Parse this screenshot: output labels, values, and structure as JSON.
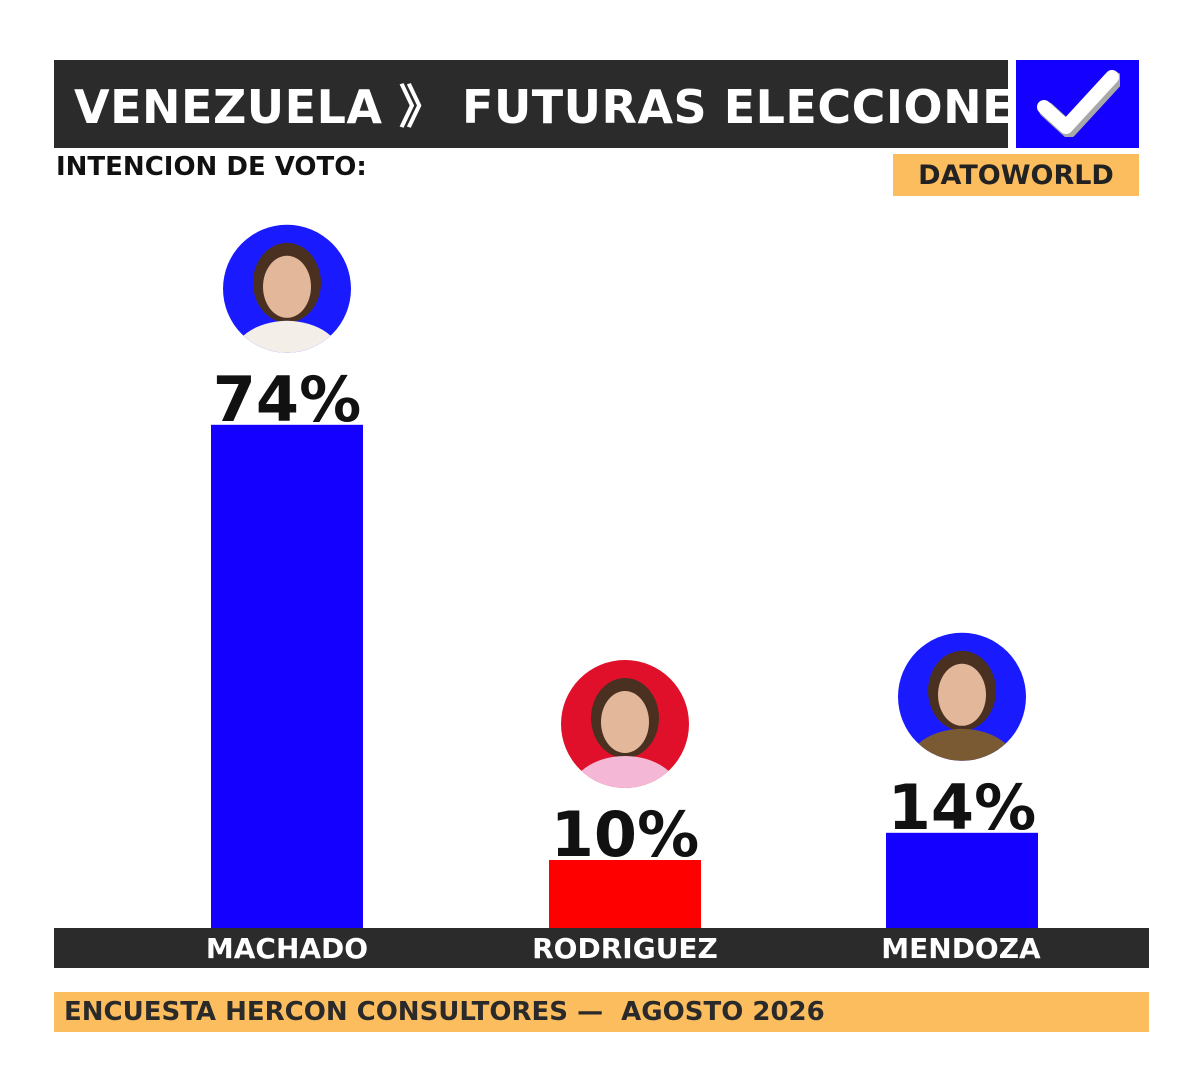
{
  "header": {
    "title": "VENEZUELA 》 FUTURAS ELECCIONES",
    "subtitle": "INTENCION DE VOTO:",
    "brand": "DATOWORLD",
    "check_icon": "checkmark-icon"
  },
  "footer": {
    "text": "ENCUESTA HERCON CONSULTORES —  AGOSTO 2026"
  },
  "colors": {
    "title_bg": "#2b2b2b",
    "accent_blue": "#1400ff",
    "accent_red": "#ff0000",
    "label_bg": "#fbbd5e"
  },
  "chart_data": {
    "type": "bar",
    "title": "",
    "categories": [
      "MACHADO",
      "RODRIGUEZ",
      "MENDOZA"
    ],
    "values": [
      74,
      10,
      14
    ],
    "value_labels": [
      "74%",
      "10%",
      "14%"
    ],
    "bar_colors": [
      "#1400ff",
      "#ff0000",
      "#1400ff"
    ],
    "portrait_colors": [
      "#1a1aff",
      "#e0102a",
      "#1a1aff"
    ],
    "ylim": [
      0,
      100
    ],
    "grid": false,
    "legend": "none"
  }
}
